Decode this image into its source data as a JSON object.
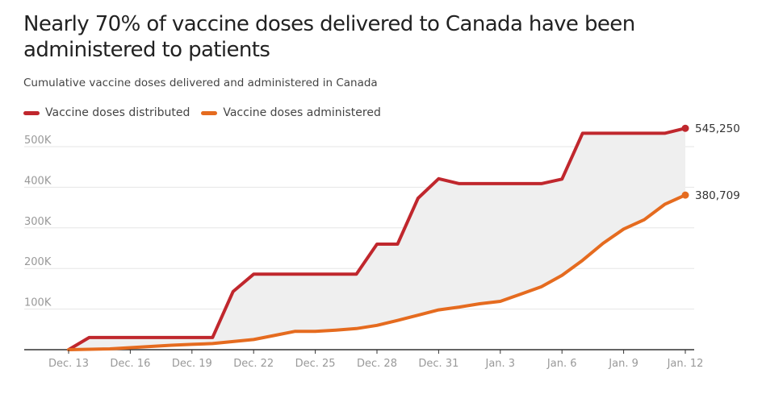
{
  "title": "Nearly 70% of vaccine doses delivered to Canada have been administered to patients",
  "subtitle": "Cumulative vaccine doses delivered and administered in Canada",
  "colors": {
    "distributed": "#c0272d",
    "administered": "#e56b1f",
    "fill": "#efefef",
    "grid": "#e6e6e6",
    "axis": "#333333"
  },
  "chart_data": {
    "type": "line",
    "x": [
      "Dec. 13",
      "Dec. 14",
      "Dec. 15",
      "Dec. 16",
      "Dec. 17",
      "Dec. 18",
      "Dec. 19",
      "Dec. 20",
      "Dec. 21",
      "Dec. 22",
      "Dec. 23",
      "Dec. 24",
      "Dec. 25",
      "Dec. 26",
      "Dec. 27",
      "Dec. 28",
      "Dec. 29",
      "Dec. 30",
      "Dec. 31",
      "Jan. 1",
      "Jan. 2",
      "Jan. 3",
      "Jan. 4",
      "Jan. 5",
      "Jan. 6",
      "Jan. 7",
      "Jan. 8",
      "Jan. 9",
      "Jan. 10",
      "Jan. 11",
      "Jan. 12"
    ],
    "x_ticks": [
      "Dec. 13",
      "Dec. 16",
      "Dec. 19",
      "Dec. 22",
      "Dec. 25",
      "Dec. 28",
      "Dec. 31",
      "Jan. 3",
      "Jan. 6",
      "Jan. 9",
      "Jan. 12"
    ],
    "y_ticks": [
      0,
      100000,
      200000,
      300000,
      400000,
      500000
    ],
    "y_tick_labels": [
      "",
      "100K",
      "200K",
      "300K",
      "400K",
      "500K"
    ],
    "ylim": [
      0,
      545250
    ],
    "grid": true,
    "legend_position": "top-left",
    "series": [
      {
        "name": "Vaccine doses distributed",
        "color": "#c0272d",
        "values": [
          0,
          30000,
          30000,
          30000,
          30000,
          30000,
          30000,
          30000,
          143000,
          186000,
          186000,
          186000,
          186000,
          186000,
          186000,
          260000,
          260000,
          373000,
          421000,
          409000,
          409000,
          409000,
          409000,
          409000,
          420000,
          533000,
          533000,
          533000,
          533000,
          533000,
          545250
        ],
        "end_label": "545,250"
      },
      {
        "name": "Vaccine doses administered",
        "color": "#e56b1f",
        "values": [
          0,
          1000,
          2000,
          5000,
          8000,
          11000,
          13000,
          15000,
          20000,
          25000,
          35000,
          45000,
          45000,
          48000,
          52000,
          60000,
          72000,
          85000,
          98000,
          105000,
          113000,
          119000,
          137000,
          155000,
          183000,
          220000,
          262000,
          297000,
          320000,
          358000,
          380709
        ],
        "end_label": "380,709"
      }
    ]
  }
}
